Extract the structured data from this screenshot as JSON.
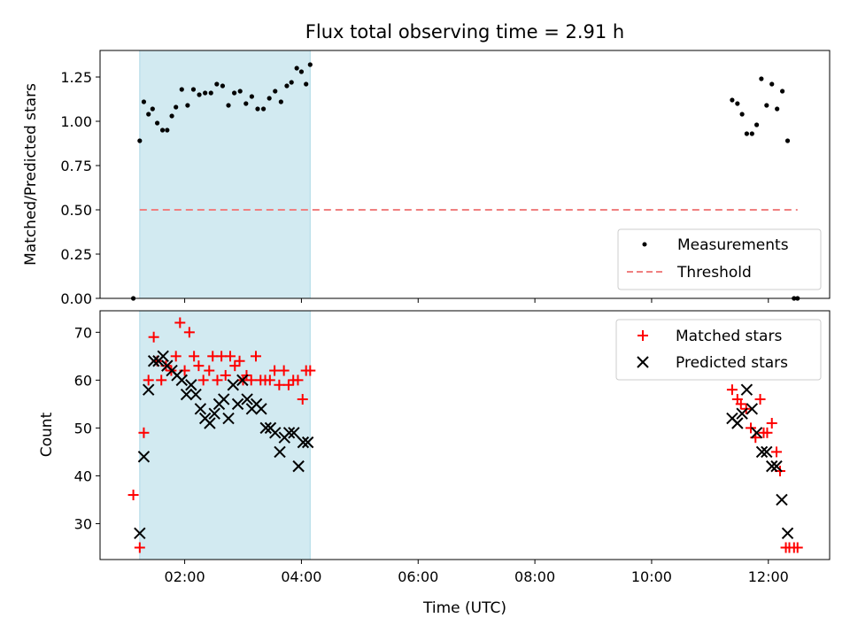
{
  "chart_data": [
    {
      "type": "scatter",
      "title": "Flux total observing time = 2.91 h",
      "xlabel": "",
      "ylabel": "Matched/Predicted stars",
      "ylim": [
        0.0,
        1.4
      ],
      "yticks": [
        "0.00",
        "0.25",
        "0.50",
        "0.75",
        "1.00",
        "1.25"
      ],
      "shaded_interval": {
        "x_start": 1.23,
        "x_end": 4.15,
        "color": "#add8e6"
      },
      "legend_position": "lower-right",
      "series": [
        {
          "name": "Measurements",
          "color": "#000000",
          "x": [
            1.12,
            1.23,
            1.3,
            1.38,
            1.45,
            1.53,
            1.62,
            1.7,
            1.78,
            1.85,
            1.95,
            2.05,
            2.15,
            2.25,
            2.35,
            2.45,
            2.55,
            2.65,
            2.75,
            2.85,
            2.95,
            3.05,
            3.15,
            3.25,
            3.35,
            3.45,
            3.55,
            3.65,
            3.75,
            3.83,
            3.92,
            4.0,
            4.08,
            4.15,
            11.38,
            11.47,
            11.55,
            11.63,
            11.72,
            11.8,
            11.88,
            11.97,
            12.06,
            12.15,
            12.24,
            12.33,
            12.44,
            12.5
          ],
          "y": [
            0.0,
            0.89,
            1.11,
            1.04,
            1.07,
            0.99,
            0.95,
            0.95,
            1.03,
            1.08,
            1.18,
            1.09,
            1.18,
            1.15,
            1.16,
            1.16,
            1.21,
            1.2,
            1.09,
            1.16,
            1.17,
            1.1,
            1.14,
            1.07,
            1.07,
            1.13,
            1.17,
            1.11,
            1.2,
            1.22,
            1.3,
            1.28,
            1.21,
            1.32,
            1.12,
            1.1,
            1.04,
            0.93,
            0.93,
            0.98,
            1.24,
            1.09,
            1.21,
            1.07,
            1.17,
            0.89,
            0.0,
            0.0
          ]
        },
        {
          "name": "Threshold",
          "color": "#f08080",
          "style": "dashed",
          "x": [
            1.23,
            12.5
          ],
          "y": [
            0.5,
            0.5
          ]
        }
      ]
    },
    {
      "type": "scatter",
      "title": "",
      "xlabel": "Time (UTC)",
      "ylabel": "Count",
      "xlim": [
        0.55,
        13.05
      ],
      "ylim": [
        22.5,
        74.5
      ],
      "xticks": [
        "02:00",
        "04:00",
        "06:00",
        "08:00",
        "10:00",
        "12:00"
      ],
      "xtick_values": [
        2,
        4,
        6,
        8,
        10,
        12
      ],
      "yticks": [
        "30",
        "40",
        "50",
        "60",
        "70"
      ],
      "shaded_interval": {
        "x_start": 1.23,
        "x_end": 4.15,
        "color": "#add8e6"
      },
      "legend_position": "upper-right",
      "series": [
        {
          "name": "Matched stars",
          "color": "#ff0000",
          "marker": "plus",
          "x": [
            1.12,
            1.23,
            1.3,
            1.38,
            1.47,
            1.53,
            1.6,
            1.68,
            1.77,
            1.85,
            1.92,
            2.0,
            2.08,
            2.16,
            2.24,
            2.32,
            2.42,
            2.48,
            2.56,
            2.63,
            2.7,
            2.78,
            2.86,
            2.94,
            3.0,
            3.06,
            3.14,
            3.22,
            3.3,
            3.38,
            3.46,
            3.54,
            3.62,
            3.7,
            3.78,
            3.86,
            3.94,
            4.02,
            4.08,
            4.15,
            11.38,
            11.47,
            11.53,
            11.62,
            11.7,
            11.78,
            11.86,
            11.92,
            11.98,
            12.06,
            12.14,
            12.2,
            12.3,
            12.36,
            12.44,
            12.5
          ],
          "y": [
            36,
            25,
            49,
            60,
            69,
            64,
            60,
            63,
            62,
            65,
            72,
            62,
            70,
            65,
            63,
            60,
            62,
            65,
            60,
            65,
            61,
            65,
            63,
            64,
            60,
            61,
            60,
            65,
            60,
            60,
            60,
            62,
            59,
            62,
            59,
            60,
            60,
            56,
            62,
            62,
            58,
            56,
            55,
            54,
            50,
            48,
            56,
            49,
            49,
            51,
            45,
            41,
            25,
            25,
            25,
            25
          ]
        },
        {
          "name": "Predicted stars",
          "color": "#000000",
          "marker": "x",
          "x": [
            1.23,
            1.3,
            1.38,
            1.47,
            1.55,
            1.63,
            1.7,
            1.78,
            1.87,
            1.95,
            2.03,
            2.11,
            2.19,
            2.27,
            2.35,
            2.43,
            2.51,
            2.59,
            2.67,
            2.75,
            2.83,
            2.91,
            2.99,
            3.07,
            3.15,
            3.23,
            3.31,
            3.39,
            3.47,
            3.55,
            3.63,
            3.71,
            3.79,
            3.87,
            3.95,
            4.03,
            4.11,
            11.38,
            11.47,
            11.55,
            11.63,
            11.72,
            11.8,
            11.89,
            11.97,
            12.06,
            12.14,
            12.23,
            12.33
          ],
          "y": [
            28,
            44,
            58,
            64,
            64,
            65,
            63,
            62,
            61,
            60,
            57,
            59,
            57,
            54,
            52,
            51,
            53,
            55,
            56,
            52,
            59,
            55,
            60,
            56,
            54,
            55,
            54,
            50,
            50,
            49,
            45,
            48,
            49,
            49,
            42,
            47,
            47,
            52,
            51,
            53,
            58,
            54,
            49,
            45,
            45,
            42,
            42,
            35,
            28
          ]
        }
      ]
    }
  ]
}
